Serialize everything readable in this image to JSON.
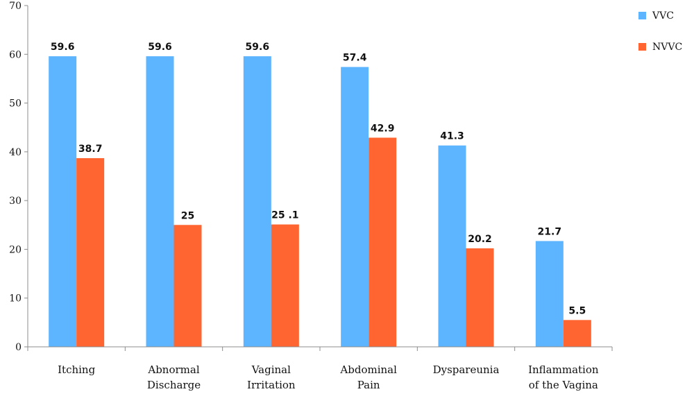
{
  "chart_data": {
    "type": "bar",
    "categories": [
      [
        "Itching"
      ],
      [
        "Abnormal",
        "Discharge"
      ],
      [
        "Vaginal",
        "Irritation"
      ],
      [
        "Abdominal",
        "Pain"
      ],
      [
        "Dyspareunia"
      ],
      [
        "Inflammation",
        "of the Vagina"
      ]
    ],
    "series": [
      {
        "name": "VVC",
        "color": "#5db4ff",
        "values": [
          59.6,
          59.6,
          59.6,
          57.4,
          41.3,
          21.7
        ],
        "labels": [
          "59.6",
          "59.6",
          "59.6",
          "57.4",
          "41.3",
          "21.7"
        ]
      },
      {
        "name": "NVVC",
        "color": "#ff6530",
        "values": [
          38.7,
          25,
          25.1,
          42.9,
          20.2,
          5.5
        ],
        "labels": [
          "38.7",
          "25",
          "25 .1",
          "42.9",
          "20.2",
          "5.5"
        ]
      }
    ],
    "ylim": [
      0,
      70
    ],
    "yticks": [
      0,
      10,
      20,
      30,
      40,
      50,
      60,
      70
    ],
    "title": "",
    "xlabel": "",
    "ylabel": "",
    "legend_position": "top-right",
    "grid": false
  }
}
